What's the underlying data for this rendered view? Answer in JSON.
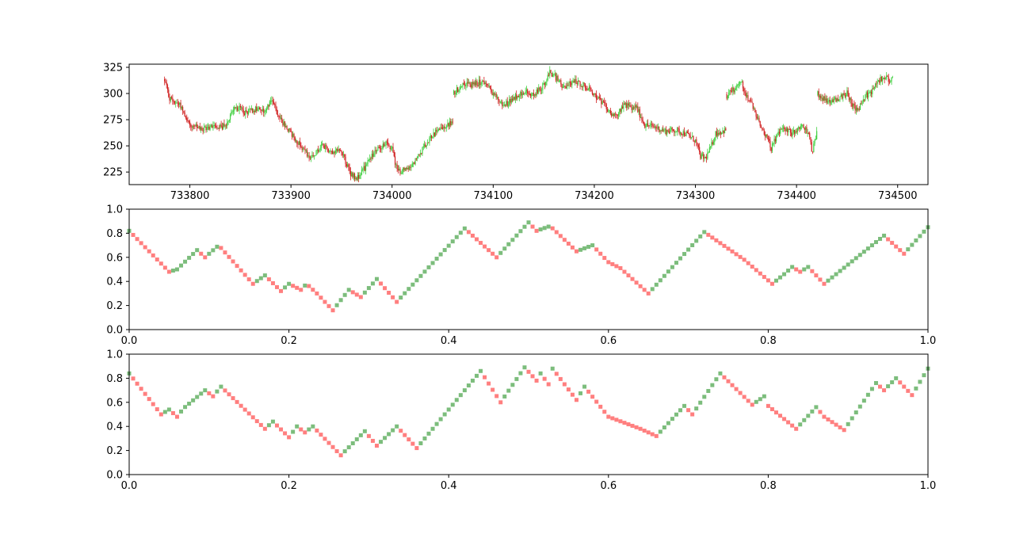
{
  "chart_data": [
    {
      "type": "candlestick",
      "xlim": [
        733740,
        734530
      ],
      "ylim": [
        213,
        328
      ],
      "xticks": [
        733800,
        733900,
        734000,
        734100,
        734200,
        734300,
        734400,
        734500
      ],
      "yticks": [
        225,
        250,
        275,
        300,
        325
      ],
      "xtick_labels": [
        "733800",
        "733900",
        "734000",
        "734100",
        "734200",
        "734300",
        "734400",
        "734500"
      ],
      "ytick_labels": [
        "225",
        "250",
        "275",
        "300",
        "325"
      ],
      "up_color": "#40d040",
      "down_color": "#d02020",
      "price_path": {
        "x_start": 733775,
        "x_end": 734495,
        "x": [
          733775,
          733780,
          733790,
          733800,
          733812,
          733825,
          733835,
          733840,
          733845,
          733855,
          733865,
          733875,
          733880,
          733890,
          733900,
          733910,
          733920,
          733930,
          733940,
          733950,
          733958,
          733965,
          733975,
          733985,
          733995,
          734000,
          734005,
          734015,
          734025,
          734035,
          734045,
          734055,
          734060,
          734061,
          734070,
          734080,
          734090,
          734100,
          734110,
          734120,
          734130,
          734140,
          734150,
          734155,
          734160,
          734170,
          734180,
          734190,
          734200,
          734210,
          734220,
          734230,
          734240,
          734241,
          734250,
          734260,
          734270,
          734280,
          734290,
          734300,
          734305,
          734310,
          734315,
          734320,
          734330,
          734331,
          734340,
          734345,
          734350,
          734360,
          734368,
          734375,
          734385,
          734395,
          734405,
          734413,
          734415,
          734420,
          734421,
          734430,
          734440,
          734450,
          734455,
          734460,
          734468,
          734475,
          734480,
          734485,
          734490,
          734495
        ],
        "y": [
          313,
          295,
          290,
          270,
          265,
          270,
          268,
          280,
          288,
          282,
          285,
          283,
          295,
          275,
          262,
          250,
          237,
          250,
          245,
          245,
          225,
          218,
          232,
          248,
          252,
          248,
          226,
          228,
          238,
          255,
          265,
          270,
          272,
          300,
          310,
          308,
          312,
          300,
          288,
          296,
          302,
          298,
          308,
          320,
          318,
          305,
          312,
          308,
          300,
          288,
          278,
          290,
          285,
          288,
          270,
          268,
          264,
          265,
          262,
          255,
          240,
          238,
          248,
          262,
          265,
          298,
          305,
          312,
          300,
          280,
          262,
          248,
          268,
          262,
          270,
          260,
          242,
          262,
          300,
          292,
          295,
          300,
          290,
          283,
          298,
          302,
          310,
          315,
          314,
          313
        ],
        "gaps_after": [
          734060,
          734240,
          734330,
          734420
        ]
      }
    },
    {
      "type": "step",
      "xlim": [
        0.0,
        1.0
      ],
      "ylim": [
        0.0,
        1.0
      ],
      "xticks": [
        0.0,
        0.2,
        0.4,
        0.6,
        0.8,
        1.0
      ],
      "yticks": [
        0.0,
        0.2,
        0.4,
        0.6,
        0.8,
        1.0
      ],
      "xtick_labels": [
        "0.0",
        "0.2",
        "0.4",
        "0.6",
        "0.8",
        "1.0"
      ],
      "ytick_labels": [
        "0.0",
        "0.2",
        "0.4",
        "0.6",
        "0.8",
        "1.0"
      ],
      "up_color": "#7cbd7c",
      "down_color": "#ff7f7f",
      "x": [
        0.0,
        0.05,
        0.06,
        0.085,
        0.095,
        0.112,
        0.155,
        0.17,
        0.19,
        0.2,
        0.215,
        0.222,
        0.235,
        0.255,
        0.275,
        0.29,
        0.31,
        0.335,
        0.42,
        0.46,
        0.5,
        0.51,
        0.527,
        0.56,
        0.58,
        0.6,
        0.615,
        0.65,
        0.72,
        0.77,
        0.805,
        0.82,
        0.83,
        0.84,
        0.85,
        0.87,
        0.945,
        0.97,
        1.0
      ],
      "y": [
        0.82,
        0.48,
        0.5,
        0.66,
        0.6,
        0.7,
        0.38,
        0.45,
        0.32,
        0.38,
        0.33,
        0.38,
        0.3,
        0.16,
        0.33,
        0.27,
        0.42,
        0.23,
        0.84,
        0.6,
        0.89,
        0.82,
        0.86,
        0.65,
        0.7,
        0.56,
        0.51,
        0.3,
        0.81,
        0.58,
        0.38,
        0.46,
        0.52,
        0.48,
        0.52,
        0.38,
        0.78,
        0.63,
        0.85
      ]
    },
    {
      "type": "step",
      "xlim": [
        0.0,
        1.0
      ],
      "ylim": [
        0.0,
        1.0
      ],
      "xticks": [
        0.0,
        0.2,
        0.4,
        0.6,
        0.8,
        1.0
      ],
      "yticks": [
        0.0,
        0.2,
        0.4,
        0.6,
        0.8,
        1.0
      ],
      "xtick_labels": [
        "0.0",
        "0.2",
        "0.4",
        "0.6",
        "0.8",
        "1.0"
      ],
      "ytick_labels": [
        "0.0",
        "0.2",
        "0.4",
        "0.6",
        "0.8",
        "1.0"
      ],
      "up_color": "#7cbd7c",
      "down_color": "#ff7f7f",
      "x": [
        0.0,
        0.04,
        0.05,
        0.06,
        0.068,
        0.095,
        0.105,
        0.115,
        0.17,
        0.18,
        0.2,
        0.21,
        0.22,
        0.23,
        0.265,
        0.295,
        0.31,
        0.335,
        0.36,
        0.44,
        0.465,
        0.495,
        0.51,
        0.515,
        0.525,
        0.53,
        0.56,
        0.57,
        0.6,
        0.64,
        0.66,
        0.695,
        0.705,
        0.74,
        0.78,
        0.795,
        0.8,
        0.835,
        0.86,
        0.87,
        0.895,
        0.935,
        0.945,
        0.96,
        0.98,
        1.0
      ],
      "y": [
        0.84,
        0.5,
        0.54,
        0.48,
        0.55,
        0.7,
        0.65,
        0.73,
        0.38,
        0.44,
        0.31,
        0.4,
        0.35,
        0.4,
        0.16,
        0.36,
        0.24,
        0.4,
        0.22,
        0.86,
        0.6,
        0.89,
        0.78,
        0.84,
        0.75,
        0.88,
        0.62,
        0.73,
        0.48,
        0.38,
        0.32,
        0.57,
        0.5,
        0.84,
        0.58,
        0.65,
        0.57,
        0.38,
        0.56,
        0.48,
        0.37,
        0.76,
        0.7,
        0.8,
        0.66,
        0.88
      ]
    }
  ]
}
